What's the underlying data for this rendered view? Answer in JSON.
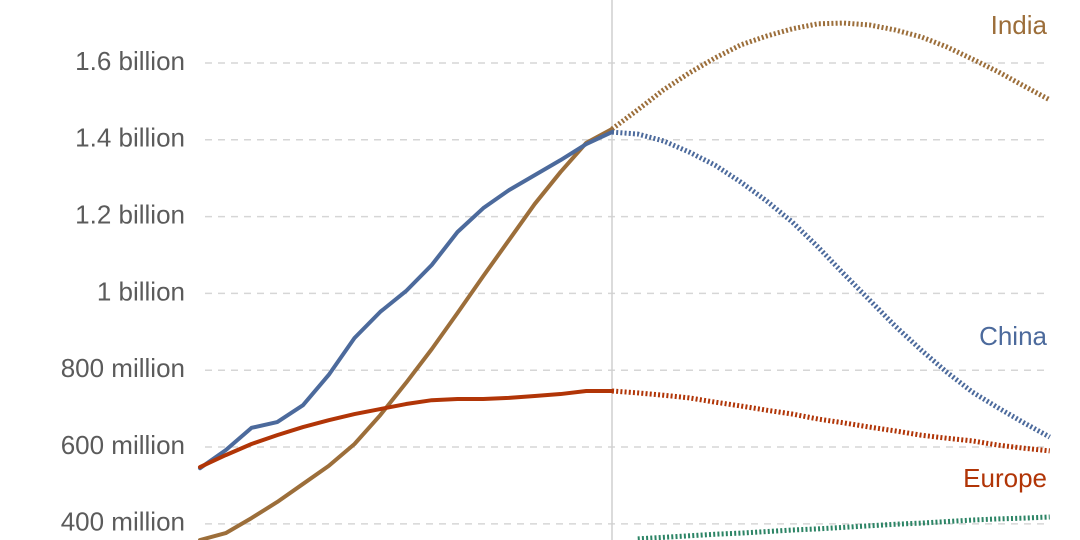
{
  "chart_data": {
    "type": "line",
    "categories": [
      null,
      null,
      null,
      null,
      null,
      null,
      null,
      null,
      null,
      null,
      null,
      null,
      null,
      null,
      null,
      null,
      null,
      null,
      null,
      null,
      null,
      null,
      null,
      null,
      null,
      null,
      null,
      null,
      null,
      null,
      null,
      null,
      null,
      null
    ],
    "ylim": [
      358000000.0,
      1764000000.0
    ],
    "yticks": [
      {
        "value": 400000000.0,
        "label": "400 million"
      },
      {
        "value": 600000000.0,
        "label": "600 million"
      },
      {
        "value": 800000000.0,
        "label": "800 million"
      },
      {
        "value": 1000000000.0,
        "label": "1 billion"
      },
      {
        "value": 1200000000.0,
        "label": "1.2 billion"
      },
      {
        "value": 1400000000.0,
        "label": "1.4 billion"
      },
      {
        "value": 1600000000.0,
        "label": "1.6 billion"
      }
    ],
    "grid": true,
    "projection_from": 16,
    "series": [
      {
        "name": "India",
        "color": "#9c6e3a",
        "values": [
          358000000.0,
          376000000.0,
          415000000.0,
          457000000.0,
          504000000.0,
          551000000.0,
          608000000.0,
          683000000.0,
          767000000.0,
          855000000.0,
          949000000.0,
          1045000000.0,
          1139000000.0,
          1233000000.0,
          1316000000.0,
          1392000000.0,
          1428000000.0,
          null,
          null,
          null,
          null,
          null,
          null,
          null,
          null,
          null,
          null,
          null,
          null,
          null,
          null,
          null,
          null,
          null
        ],
        "projection": [
          null,
          null,
          null,
          null,
          null,
          null,
          null,
          null,
          null,
          null,
          null,
          null,
          null,
          null,
          null,
          null,
          1428000000.0,
          1478000000.0,
          1530000000.0,
          1574000000.0,
          1613000000.0,
          1647000000.0,
          1670000000.0,
          1689000000.0,
          1702000000.0,
          1704000000.0,
          1699000000.0,
          1686000000.0,
          1668000000.0,
          1642000000.0,
          1610000000.0,
          1577000000.0,
          1540000000.0,
          1504000000.0
        ]
      },
      {
        "name": "China",
        "color": "#4c6a9c",
        "values": [
          545000000.0,
          592000000.0,
          650000000.0,
          665000000.0,
          709000000.0,
          788000000.0,
          884000000.0,
          952000000.0,
          1006000000.0,
          1074000000.0,
          1160000000.0,
          1222000000.0,
          1269000000.0,
          1308000000.0,
          1347000000.0,
          1389000000.0,
          1420000000.0,
          null,
          null,
          null,
          null,
          null,
          null,
          null,
          null,
          null,
          null,
          null,
          null,
          null,
          null,
          null,
          null,
          null
        ],
        "projection": [
          null,
          null,
          null,
          null,
          null,
          null,
          null,
          null,
          null,
          null,
          null,
          null,
          null,
          null,
          null,
          null,
          1420000000.0,
          1415000000.0,
          1397000000.0,
          1368000000.0,
          1334000000.0,
          1290000000.0,
          1241000000.0,
          1186000000.0,
          1121000000.0,
          1051000000.0,
          983000000.0,
          915000000.0,
          853000000.0,
          795000000.0,
          743000000.0,
          702000000.0,
          663000000.0,
          626000000.0
        ]
      },
      {
        "name": "Europe",
        "color": "#b13507",
        "values": [
          548000000.0,
          579000000.0,
          608000000.0,
          631000000.0,
          652000000.0,
          670000000.0,
          686000000.0,
          699000000.0,
          712000000.0,
          722000000.0,
          725000000.0,
          725000000.0,
          728000000.0,
          733000000.0,
          738000000.0,
          746000000.0,
          746000000.0,
          null,
          null,
          null,
          null,
          null,
          null,
          null,
          null,
          null,
          null,
          null,
          null,
          null,
          null,
          null,
          null,
          null
        ],
        "projection": [
          null,
          null,
          null,
          null,
          null,
          null,
          null,
          null,
          null,
          null,
          null,
          null,
          null,
          null,
          null,
          null,
          746000000.0,
          741000000.0,
          735000000.0,
          728000000.0,
          717000000.0,
          707000000.0,
          696000000.0,
          686000000.0,
          673000000.0,
          663000000.0,
          652000000.0,
          642000000.0,
          631000000.0,
          623000000.0,
          616000000.0,
          605000000.0,
          597000000.0,
          590000000.0
        ]
      },
      {
        "color": "#2c8465",
        "values": [
          null,
          null,
          null,
          null,
          null,
          null,
          null,
          null,
          null,
          null,
          null,
          null,
          null,
          null,
          null,
          null,
          null,
          null,
          null,
          null,
          null,
          null,
          null,
          null,
          null,
          null,
          null,
          null,
          null,
          null,
          null,
          null,
          null,
          null
        ],
        "projection": [
          null,
          null,
          null,
          null,
          null,
          null,
          null,
          null,
          null,
          null,
          null,
          null,
          null,
          null,
          null,
          null,
          null,
          361000000.0,
          365000000.0,
          369000000.0,
          373000000.0,
          376000000.0,
          380000000.0,
          384000000.0,
          387000000.0,
          391000000.0,
          395000000.0,
          399000000.0,
          402000000.0,
          406000000.0,
          410000000.0,
          413000000.0,
          415000000.0,
          418000000.0
        ]
      }
    ]
  }
}
